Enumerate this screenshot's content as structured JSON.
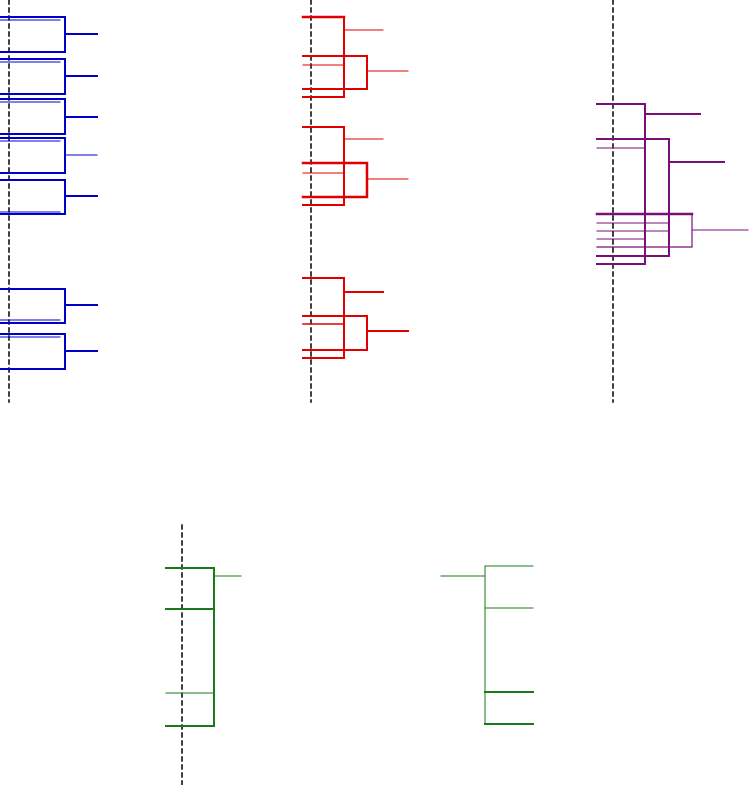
{
  "colors": {
    "blue": "#0000cc",
    "red": "#e00000",
    "purple": "#7a0f7a",
    "green": "#1a7a1a",
    "divider": "#000000"
  },
  "panels": [
    {
      "id": "blue-bracket-panel",
      "color_key": "blue",
      "shown": true
    },
    {
      "id": "red-bracket-panel",
      "color_key": "red",
      "shown": true
    },
    {
      "id": "purple-bracket-panel",
      "color_key": "purple",
      "shown": true
    },
    {
      "id": "green-left-bracket-panel",
      "color_key": "green",
      "shown": true
    },
    {
      "id": "green-right-bracket-panel",
      "color_key": "green",
      "shown": true
    }
  ]
}
